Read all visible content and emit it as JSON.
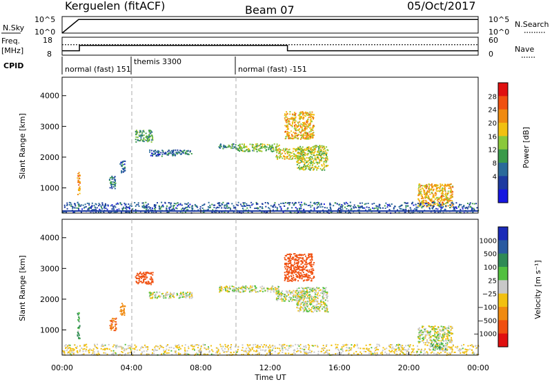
{
  "header": {
    "radar": "Kerguelen (fitACF)",
    "beam": "Beam 07",
    "date": "05/Oct/2017"
  },
  "nsky_panel": {
    "left_label": "N.Sky",
    "left_ticks": [
      "10^5",
      "10^0"
    ],
    "right_ticks": [
      "10^5",
      "10^0"
    ],
    "right_label": "N.Search"
  },
  "freq_panel": {
    "left_label_line1": "Freq.",
    "left_label_line2": "[MHz]",
    "left_ticks": [
      "18",
      "8"
    ],
    "right_ticks": [
      "60",
      "0"
    ],
    "right_label": "Nave"
  },
  "cpid_panel": {
    "label": "CPID",
    "segments": [
      {
        "start": 0,
        "end": 4,
        "text": "normal (fast) 151"
      },
      {
        "start": 4,
        "end": 10,
        "text": "themis 3300"
      },
      {
        "start": 10,
        "end": 24,
        "text": "normal (fast) -151"
      }
    ]
  },
  "time_axis": {
    "ticks": [
      "00:00",
      "04:00",
      "08:00",
      "12:00",
      "16:00",
      "20:00",
      "00:00"
    ],
    "label": "Time UT"
  },
  "power_panel": {
    "ylabel": "Slant Range [km]",
    "yticks": [
      "1000",
      "2000",
      "3000",
      "4000"
    ],
    "cbar_label": "Power [dB]",
    "cbar_ticks": [
      "28",
      "24",
      "20",
      "16",
      "12",
      "8",
      "4"
    ],
    "cbar_colors": [
      "#e01010",
      "#f05010",
      "#f08a10",
      "#f2c010",
      "#8ac83a",
      "#3a9a4a",
      "#2a6a9a",
      "#1d3aa0",
      "#1616e0"
    ]
  },
  "velocity_panel": {
    "ylabel": "Slant Range [km]",
    "yticks": [
      "1000",
      "2000",
      "3000",
      "4000"
    ],
    "cbar_label": "Velocity [m s⁻¹]",
    "cbar_ticks": [
      "1000",
      "500",
      "100",
      "25",
      "−25",
      "−100",
      "−500",
      "−1000"
    ],
    "cbar_colors": [
      "#1a2ab8",
      "#2a5aa0",
      "#2f8a55",
      "#52c040",
      "#c8c8c8",
      "#f2c010",
      "#f08a10",
      "#f05010",
      "#e01010"
    ]
  },
  "chart_data": [
    {
      "type": "line",
      "title": "N.Sky",
      "x": [
        0,
        0.95,
        6,
        12,
        16,
        20,
        24
      ],
      "y": [
        1,
        30000,
        30000,
        30000,
        30000,
        30000,
        30000
      ],
      "ylim": [
        "10^0",
        "10^5"
      ]
    },
    {
      "type": "line",
      "title": "Freq. [MHz]",
      "series": [
        {
          "values_x": [
            0,
            1,
            1,
            13,
            13,
            24
          ],
          "values_y": [
            10,
            10,
            13.5,
            13.5,
            10,
            10
          ]
        },
        {
          "values_x": [
            0,
            24
          ],
          "values_y": [
            14,
            14
          ]
        }
      ],
      "ylim": [
        8,
        18
      ]
    },
    {
      "type": "heatmap",
      "title": "Power [dB]",
      "xlabel": "Time UT",
      "ylabel": "Slant Range [km]",
      "xlim": [
        0,
        24
      ],
      "ylim": [
        180,
        4600
      ],
      "clim": [
        0,
        30
      ],
      "patches": [
        {
          "t0": 0.85,
          "t1": 1.0,
          "r0": 700,
          "r1": 1600,
          "value": 22
        },
        {
          "t0": 2.7,
          "t1": 3.1,
          "r0": 1000,
          "r1": 1400,
          "value": 8
        },
        {
          "t0": 3.3,
          "t1": 3.6,
          "r0": 1500,
          "r1": 1900,
          "value": 6
        },
        {
          "t0": 4.2,
          "t1": 5.2,
          "r0": 2500,
          "r1": 2900,
          "value": 12
        },
        {
          "t0": 5.0,
          "t1": 6.5,
          "r0": 2050,
          "r1": 2250,
          "value": 6
        },
        {
          "t0": 6.5,
          "t1": 7.5,
          "r0": 2100,
          "r1": 2250,
          "value": 8
        },
        {
          "t0": 9.0,
          "t1": 10.0,
          "r0": 2300,
          "r1": 2450,
          "value": 10
        },
        {
          "t0": 10.0,
          "t1": 12.5,
          "r0": 2200,
          "r1": 2450,
          "value": 14
        },
        {
          "t0": 12.3,
          "t1": 14.0,
          "r0": 1950,
          "r1": 2300,
          "value": 18
        },
        {
          "t0": 12.8,
          "t1": 14.5,
          "r0": 2600,
          "r1": 3500,
          "value": 20
        },
        {
          "t0": 13.5,
          "t1": 15.3,
          "r0": 1600,
          "r1": 2400,
          "value": 16
        },
        {
          "t0": 20.5,
          "t1": 22.5,
          "r0": 400,
          "r1": 1150,
          "value": 20
        },
        {
          "t0": 0,
          "t1": 24,
          "r0": 200,
          "r1": 550,
          "value": 6
        }
      ]
    },
    {
      "type": "heatmap",
      "title": "Velocity [m s⁻¹]",
      "xlabel": "Time UT",
      "ylabel": "Slant Range [km]",
      "xlim": [
        0,
        24
      ],
      "ylim": [
        180,
        4600
      ],
      "clim": [
        -1000,
        1000
      ],
      "patches": [
        {
          "t0": 0.85,
          "t1": 1.0,
          "r0": 700,
          "r1": 1600,
          "value": 80
        },
        {
          "t0": 2.7,
          "t1": 3.1,
          "r0": 1000,
          "r1": 1400,
          "value": -300
        },
        {
          "t0": 3.3,
          "t1": 3.6,
          "r0": 1500,
          "r1": 1900,
          "value": -200
        },
        {
          "t0": 4.2,
          "t1": 5.2,
          "r0": 2500,
          "r1": 2900,
          "value": -400
        },
        {
          "t0": 5.0,
          "t1": 7.5,
          "r0": 2050,
          "r1": 2250,
          "value": 0
        },
        {
          "t0": 9.0,
          "t1": 12.5,
          "r0": 2250,
          "r1": 2450,
          "value": 0
        },
        {
          "t0": 12.3,
          "t1": 14.0,
          "r0": 1950,
          "r1": 2300,
          "value": 0
        },
        {
          "t0": 12.8,
          "t1": 14.5,
          "r0": 2600,
          "r1": 3500,
          "value": -500
        },
        {
          "t0": 13.5,
          "t1": 15.3,
          "r0": 1600,
          "r1": 2400,
          "value": 0
        },
        {
          "t0": 20.5,
          "t1": 22.5,
          "r0": 600,
          "r1": 1150,
          "value": 0
        },
        {
          "t0": 21.2,
          "t1": 22.2,
          "r0": 350,
          "r1": 600,
          "value": 60
        },
        {
          "t0": 0,
          "t1": 24,
          "r0": 200,
          "r1": 550,
          "value": -30
        }
      ]
    }
  ]
}
